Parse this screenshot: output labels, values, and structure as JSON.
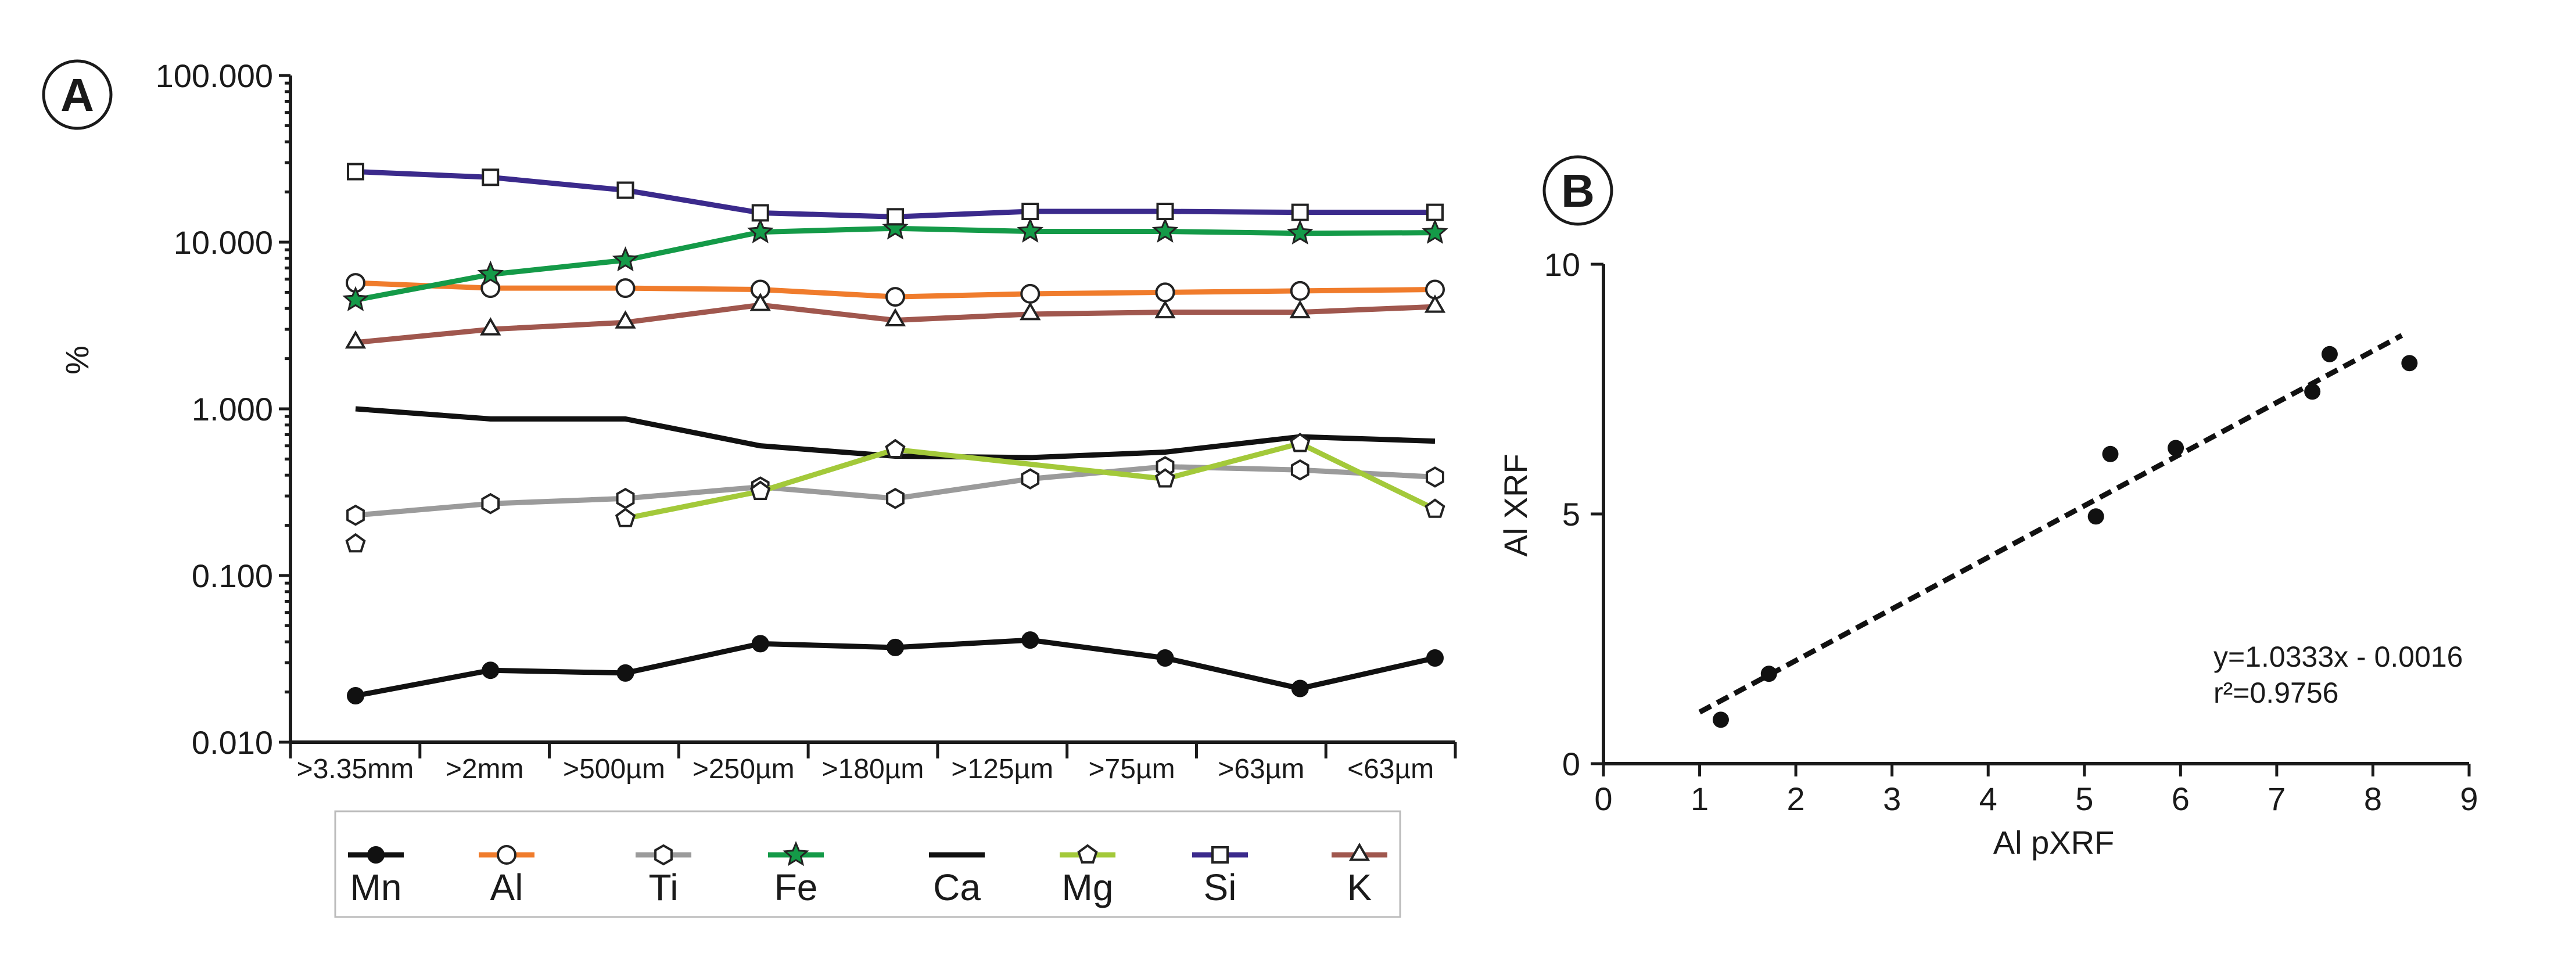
{
  "panels": {
    "a": {
      "letter": "A"
    },
    "b": {
      "letter": "B"
    }
  },
  "colors": {
    "Mn": "#111111",
    "Al": "#f07c2c",
    "Ti": "#9b9b9b",
    "Fe": "#149a48",
    "Ca": "#111111",
    "Mg": "#a3c93a",
    "Si": "#3b2a8c",
    "K": "#a0574e"
  },
  "chart_data": [
    {
      "id": "A",
      "type": "line",
      "title": "",
      "xlabel": "",
      "ylabel": "%",
      "yscale": "log",
      "ylim": [
        0.01,
        100
      ],
      "yticks": [
        {
          "value": 100,
          "label": "100.000"
        },
        {
          "value": 10,
          "label": "10.000"
        },
        {
          "value": 1,
          "label": "1.000"
        },
        {
          "value": 0.1,
          "label": "0.100"
        },
        {
          "value": 0.01,
          "label": "0.010"
        }
      ],
      "categories": [
        ">3.35mm",
        ">2mm",
        ">500µm",
        ">250µm",
        ">180µm",
        ">125µm",
        ">75µm",
        ">63µm",
        "<63µm"
      ],
      "series": [
        {
          "name": "Mn",
          "marker": "filled-circle",
          "line": true,
          "values": [
            0.019,
            0.027,
            0.026,
            0.039,
            0.037,
            0.041,
            0.032,
            0.021,
            0.032
          ]
        },
        {
          "name": "Al",
          "marker": "open-circle",
          "line": true,
          "values": [
            5.7,
            5.3,
            5.3,
            5.2,
            4.7,
            4.9,
            5.0,
            5.1,
            5.2
          ]
        },
        {
          "name": "Ti",
          "marker": "open-hexagon",
          "line": true,
          "values": [
            0.23,
            0.27,
            0.29,
            0.34,
            0.29,
            0.38,
            0.45,
            0.43,
            0.39
          ]
        },
        {
          "name": "Fe",
          "marker": "star",
          "line": true,
          "values": [
            4.5,
            6.4,
            7.8,
            11.5,
            12.1,
            11.6,
            11.6,
            11.3,
            11.4
          ]
        },
        {
          "name": "Ca",
          "marker": "none",
          "line": true,
          "values": [
            1.0,
            0.87,
            0.87,
            0.6,
            0.52,
            0.51,
            0.55,
            0.68,
            0.64
          ]
        },
        {
          "name": "Mg",
          "marker": "open-pentagon",
          "line": true,
          "values": [
            0.155,
            null,
            0.22,
            0.32,
            0.57,
            null,
            0.38,
            0.62,
            0.25
          ]
        },
        {
          "name": "Si",
          "marker": "open-square",
          "line": true,
          "values": [
            26.5,
            24.5,
            20.5,
            15.0,
            14.2,
            15.3,
            15.3,
            15.1,
            15.1
          ]
        },
        {
          "name": "K",
          "marker": "open-triangle",
          "line": true,
          "values": [
            2.5,
            3.0,
            3.3,
            4.2,
            3.4,
            3.7,
            3.8,
            3.8,
            4.1
          ]
        }
      ],
      "legend": {
        "placement": "bottom",
        "order": [
          "Mn",
          "Al",
          "Ti",
          "Fe",
          "Ca",
          "Mg",
          "Si",
          "K"
        ]
      }
    },
    {
      "id": "B",
      "type": "scatter",
      "title": "",
      "xlabel": "Al pXRF",
      "ylabel": "Al XRF",
      "xlim": [
        0,
        9
      ],
      "ylim": [
        0,
        10
      ],
      "xticks": [
        0,
        1,
        2,
        3,
        4,
        5,
        6,
        7,
        8,
        9
      ],
      "yticks": [
        0,
        5,
        10
      ],
      "points": [
        {
          "x": 1.22,
          "y": 0.88
        },
        {
          "x": 1.72,
          "y": 1.8
        },
        {
          "x": 5.12,
          "y": 4.95
        },
        {
          "x": 5.27,
          "y": 6.2
        },
        {
          "x": 5.95,
          "y": 6.32
        },
        {
          "x": 7.37,
          "y": 7.45
        },
        {
          "x": 7.55,
          "y": 8.2
        },
        {
          "x": 8.38,
          "y": 8.02
        }
      ],
      "trendline": {
        "slope": 1.0333,
        "intercept": -0.0016,
        "x_range": [
          1.0,
          8.3
        ],
        "style": "dashed"
      },
      "annotations": {
        "equation": "y=1.0333x - 0.0016",
        "r2": "r²=0.9756"
      }
    }
  ]
}
